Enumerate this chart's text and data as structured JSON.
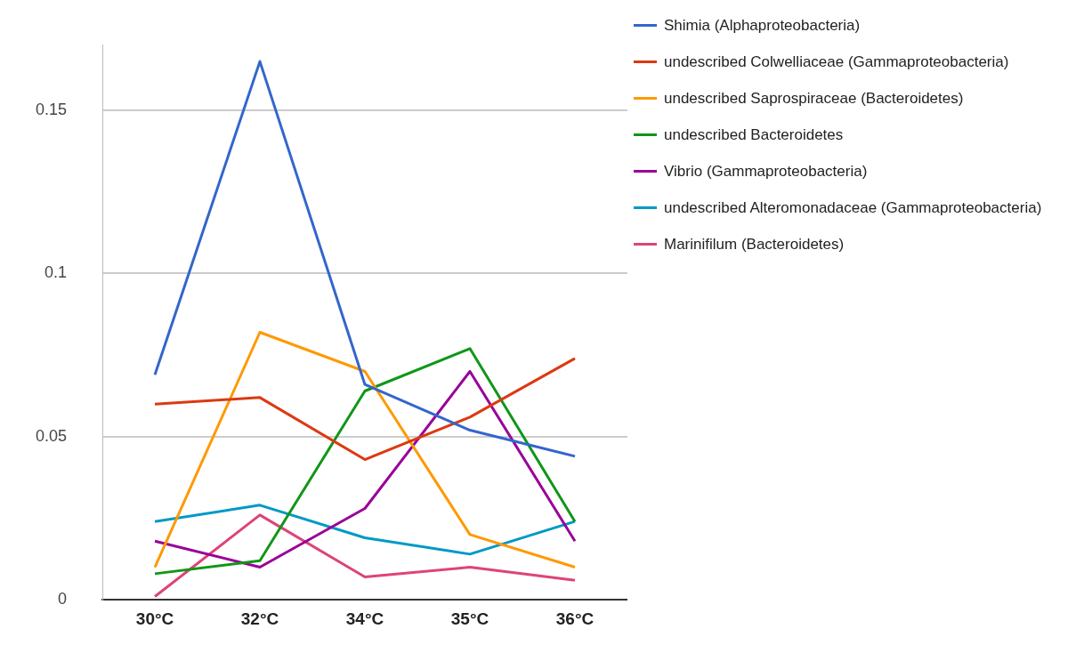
{
  "chart_data": {
    "type": "line",
    "categories": [
      "30°C",
      "32°C",
      "34°C",
      "35°C",
      "36°C"
    ],
    "series": [
      {
        "name": "Shimia (Alphaproteobacteria)",
        "color": "#3366cc",
        "values": [
          0.069,
          0.165,
          0.066,
          0.052,
          0.044
        ]
      },
      {
        "name": "undescribed Colwelliaceae (Gammaproteobacteria)",
        "color": "#dc3912",
        "values": [
          0.06,
          0.062,
          0.043,
          0.056,
          0.074
        ]
      },
      {
        "name": "undescribed Saprospiraceae (Bacteroidetes)",
        "color": "#ff9900",
        "values": [
          0.01,
          0.082,
          0.07,
          0.02,
          0.01
        ]
      },
      {
        "name": "undescribed Bacteroidetes",
        "color": "#109618",
        "values": [
          0.008,
          0.012,
          0.064,
          0.077,
          0.024
        ]
      },
      {
        "name": "Vibrio (Gammaproteobacteria)",
        "color": "#990099",
        "values": [
          0.018,
          0.01,
          0.028,
          0.07,
          0.018
        ]
      },
      {
        "name": "undescribed Alteromonadaceae (Gammaproteobacteria)",
        "color": "#0099c6",
        "values": [
          0.024,
          0.029,
          0.019,
          0.014,
          0.024
        ]
      },
      {
        "name": "Marinifilum (Bacteroidetes)",
        "color": "#dd4477",
        "values": [
          0.001,
          0.026,
          0.007,
          0.01,
          0.006
        ]
      }
    ],
    "ylim": [
      0,
      0.17
    ],
    "yticks": [
      0,
      0.05,
      0.1,
      0.15
    ],
    "grid": "y",
    "legend": "top right",
    "marker": "none",
    "line_style": "solid"
  }
}
